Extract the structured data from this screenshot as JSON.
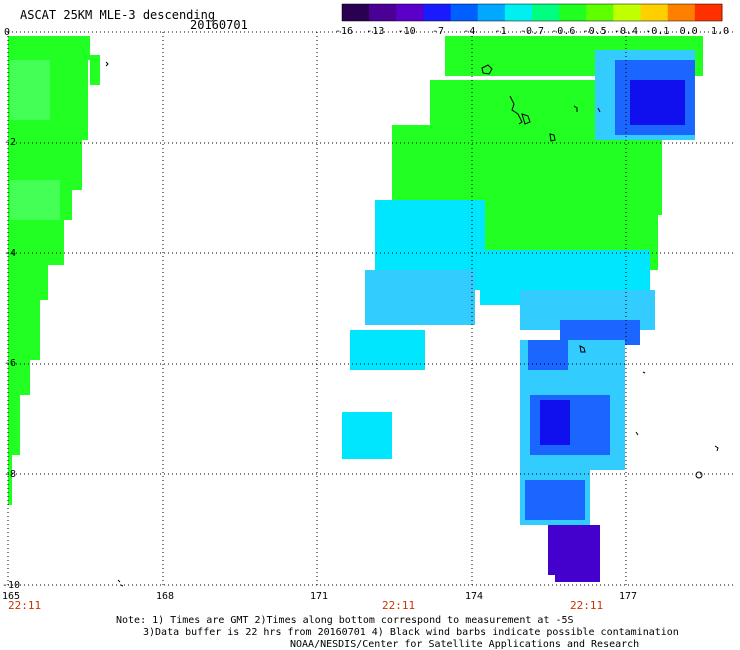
{
  "header": {
    "title": "ASCAT 25KM MLE-3 descending",
    "date": "20160701"
  },
  "colorbar": {
    "labels": [
      "-16",
      "-13",
      "-10",
      "-7",
      "-4",
      "-1",
      "-0.7",
      "-0.6",
      "-0.5",
      "-0.4",
      "-0.1",
      "0.0",
      "1.0"
    ],
    "colors": [
      "#2a0050",
      "#4b0095",
      "#5a00c8",
      "#1a1aff",
      "#0060ff",
      "#00a8ff",
      "#00f0f0",
      "#00ff80",
      "#20ff20",
      "#60ff00",
      "#c0ff00",
      "#ffd000",
      "#ff8000",
      "#ff3000"
    ]
  },
  "axes": {
    "lon_ticks": [
      "165",
      "168",
      "171",
      "174",
      "177"
    ],
    "lat_ticks": [
      "0",
      "-2",
      "-4",
      "-6",
      "-8",
      "-10"
    ]
  },
  "swath_times": [
    "22:11",
    "22:11",
    "22:11"
  ],
  "notes": {
    "line1": "Note: 1) Times are GMT 2)Times along bottom correspond to measurement at -5S",
    "line2": "3)Data buffer is 22 hrs from 20160701 4) Black wind barbs indicate possible contamination",
    "line3": "NOAA/NESDIS/Center for Satellite Applications and Research"
  },
  "palette": {
    "green": "#22ff22",
    "lightgreen": "#44ff55",
    "cyan": "#00e6ff",
    "skyblue": "#33ccff",
    "blue": "#1a66ff",
    "darkblue": "#1010ee",
    "purple": "#4400cc"
  }
}
